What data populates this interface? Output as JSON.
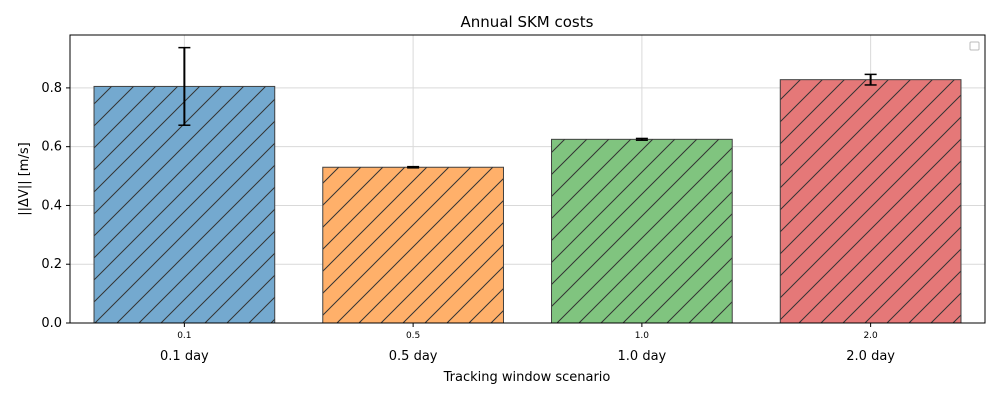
{
  "chart_data": {
    "type": "bar",
    "title": "Annual SKM costs",
    "xlabel": "Tracking window scenario",
    "ylabel": "||ΔV|| [m/s]",
    "categories": [
      "0.1",
      "0.5",
      "1.0",
      "2.0"
    ],
    "group_labels": [
      "0.1 day",
      "0.5 day",
      "1.0 day",
      "2.0 day"
    ],
    "values": [
      0.805,
      0.53,
      0.625,
      0.828
    ],
    "errors": [
      0.132,
      0.002,
      0.003,
      0.018
    ],
    "colors": [
      "#74a9cf",
      "#ffb06a",
      "#80c47f",
      "#e57878"
    ],
    "ylim": [
      0,
      0.98
    ],
    "yticks": [
      0.0,
      0.2,
      0.4,
      0.6,
      0.8
    ],
    "ytick_labels": [
      "0.0",
      "0.2",
      "0.4",
      "0.6",
      "0.8"
    ],
    "grid": true,
    "hatch": "/",
    "legend": "upper-right-empty"
  }
}
